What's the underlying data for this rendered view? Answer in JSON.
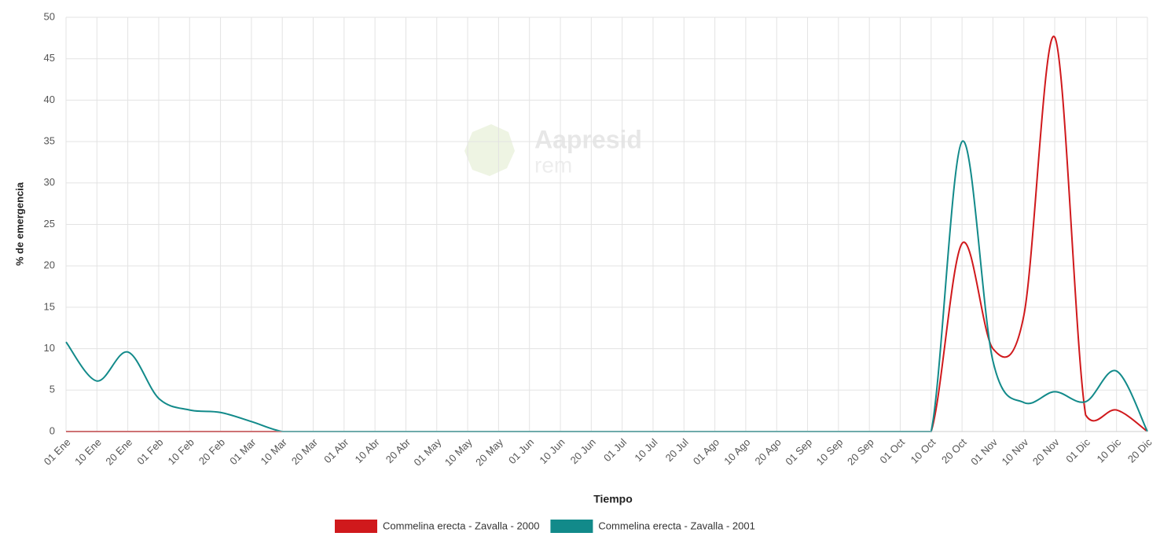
{
  "chart_data": {
    "type": "line",
    "x_label": "Tiempo",
    "y_label": "% de emergencia",
    "watermark": {
      "title": "Aapresid",
      "subtitle": "rem"
    },
    "categories": [
      "01 Ene",
      "10 Ene",
      "20 Ene",
      "01 Feb",
      "10 Feb",
      "20 Feb",
      "01 Mar",
      "10 Mar",
      "20 Mar",
      "01 Abr",
      "10 Abr",
      "20 Abr",
      "01 May",
      "10 May",
      "20 May",
      "01 Jun",
      "10 Jun",
      "20 Jun",
      "01 Jul",
      "10 Jul",
      "20 Jul",
      "01 Ago",
      "10 Ago",
      "20 Ago",
      "01 Sep",
      "10 Sep",
      "20 Sep",
      "01 Oct",
      "10 Oct",
      "20 Oct",
      "01 Nov",
      "10 Nov",
      "20 Nov",
      "01 Dic",
      "10 Dic",
      "20 Dic"
    ],
    "series": [
      {
        "name": "Commelina erecta - Zavalla - 2000",
        "color": "#d0191c",
        "values": [
          0,
          0,
          0,
          0,
          0,
          0,
          0,
          0,
          0,
          0,
          0,
          0,
          0,
          0,
          0,
          0,
          0,
          0,
          0,
          0,
          0,
          0,
          0,
          0,
          0,
          0,
          0,
          0,
          0,
          22.7,
          10,
          14,
          47.6,
          2,
          2.6,
          0
        ]
      },
      {
        "name": "Commelina erecta - Zavalla - 2001",
        "color": "#128a8a",
        "values": [
          10.8,
          6.1,
          9.6,
          4,
          2.6,
          2.3,
          1.2,
          0,
          0,
          0,
          0,
          0,
          0,
          0,
          0,
          0,
          0,
          0,
          0,
          0,
          0,
          0,
          0,
          0,
          0,
          0,
          0,
          0,
          0,
          35,
          8.5,
          3.5,
          4.8,
          3.6,
          7.3,
          0
        ]
      }
    ],
    "ylim": [
      0,
      50
    ],
    "yticks": [
      0,
      5,
      10,
      15,
      20,
      25,
      30,
      35,
      40,
      45,
      50
    ],
    "grid": true
  }
}
